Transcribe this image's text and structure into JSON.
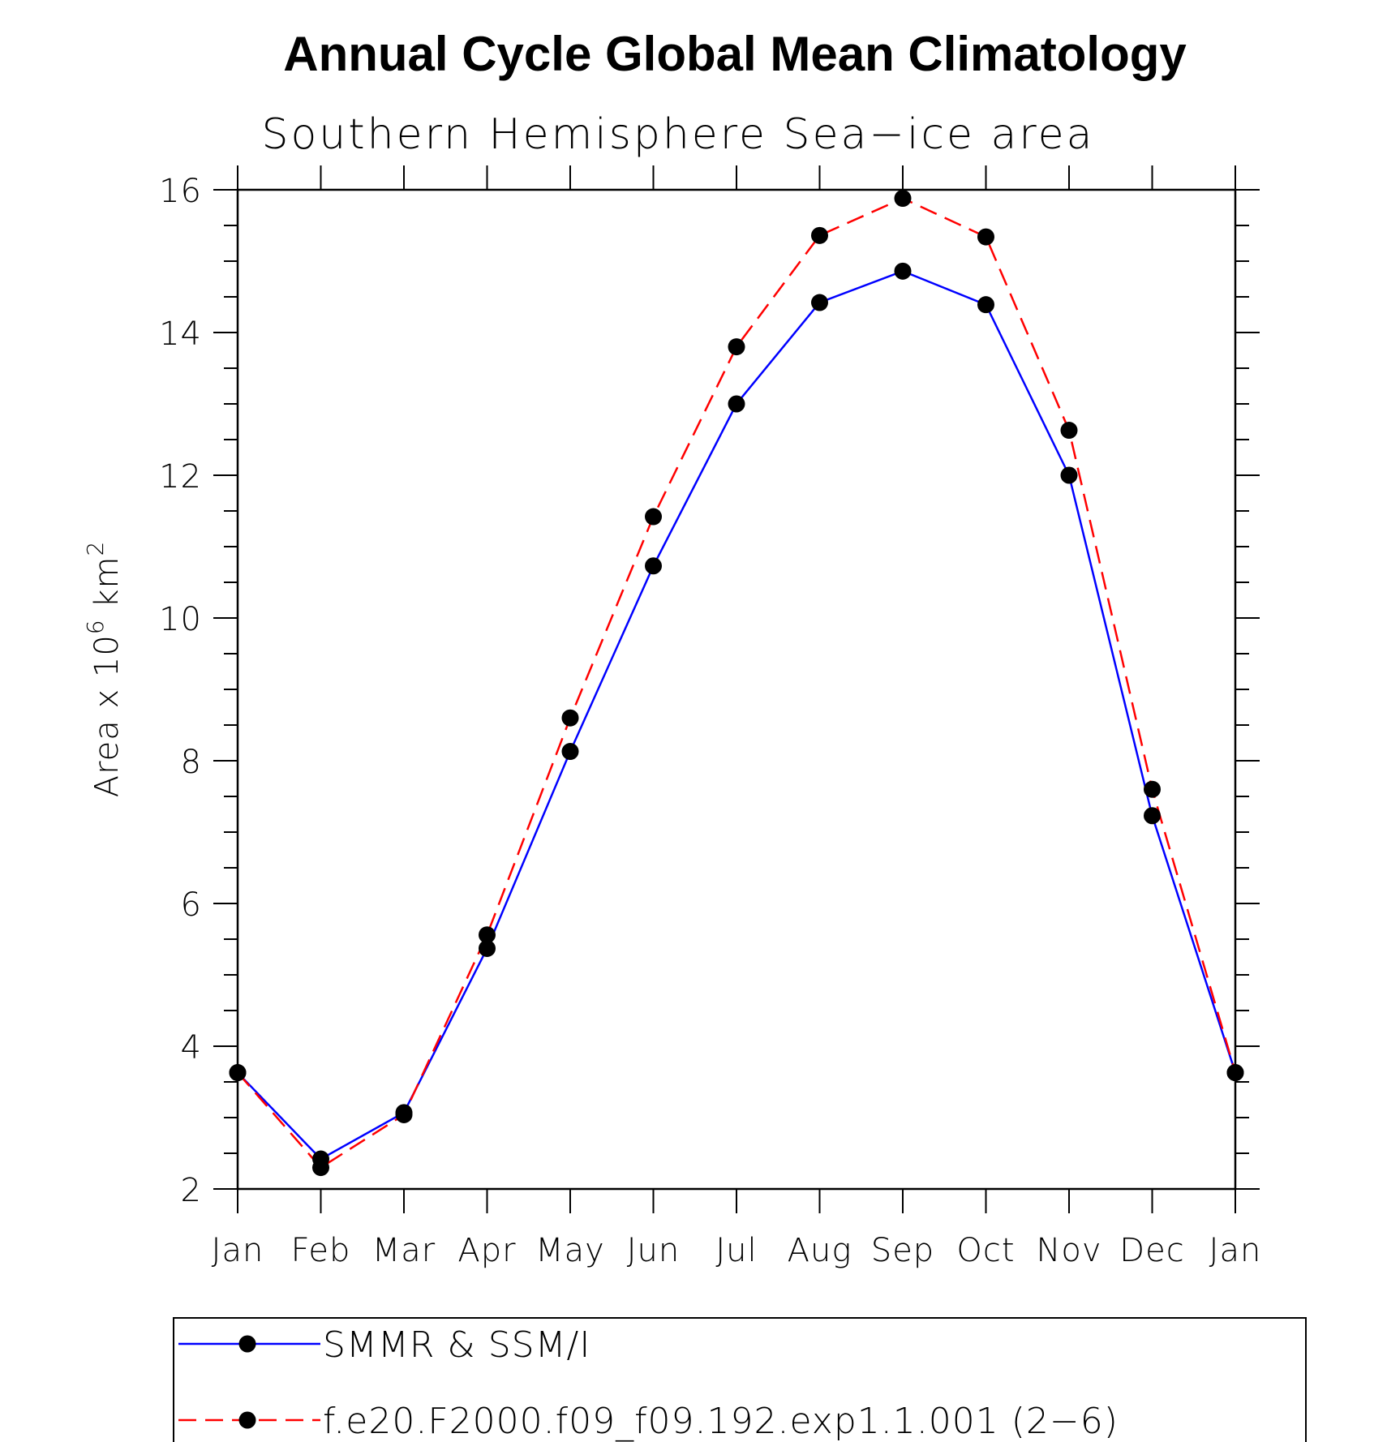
{
  "chart_data": {
    "type": "line",
    "title": "Annual Cycle Global Mean Climatology",
    "subtitle": "Southern Hemisphere Sea−ice area",
    "ylabel": {
      "prefix": "Area x 10",
      "superscript": "6",
      "middle": " km",
      "superscript2": "2"
    },
    "xlabel": "",
    "categories": [
      "Jan",
      "Feb",
      "Mar",
      "Apr",
      "May",
      "Jun",
      "Jul",
      "Aug",
      "Sep",
      "Oct",
      "Nov",
      "Dec",
      "Jan"
    ],
    "ylim": [
      2,
      16
    ],
    "yticks": [
      2,
      4,
      6,
      8,
      10,
      12,
      14,
      16
    ],
    "yminor_step": 0.5,
    "grid": false,
    "legend_position": "bottom",
    "series": [
      {
        "name": "SMMR & SSM/I",
        "color": "#0000ff",
        "dash": "solid",
        "marker": "filled-circle",
        "values": [
          3.63,
          2.42,
          3.07,
          5.37,
          8.13,
          10.73,
          13.0,
          14.42,
          14.86,
          14.39,
          12.0,
          7.23,
          3.63
        ]
      },
      {
        "name": "f.e20.F2000.f09_f09.192.exp1.1.001 (2−6)",
        "color": "#ff0000",
        "dash": "dashed",
        "marker": "filled-circle",
        "values": [
          3.63,
          2.3,
          3.04,
          5.56,
          8.6,
          11.42,
          13.8,
          15.36,
          15.88,
          15.34,
          12.63,
          7.6,
          3.63
        ]
      }
    ]
  }
}
